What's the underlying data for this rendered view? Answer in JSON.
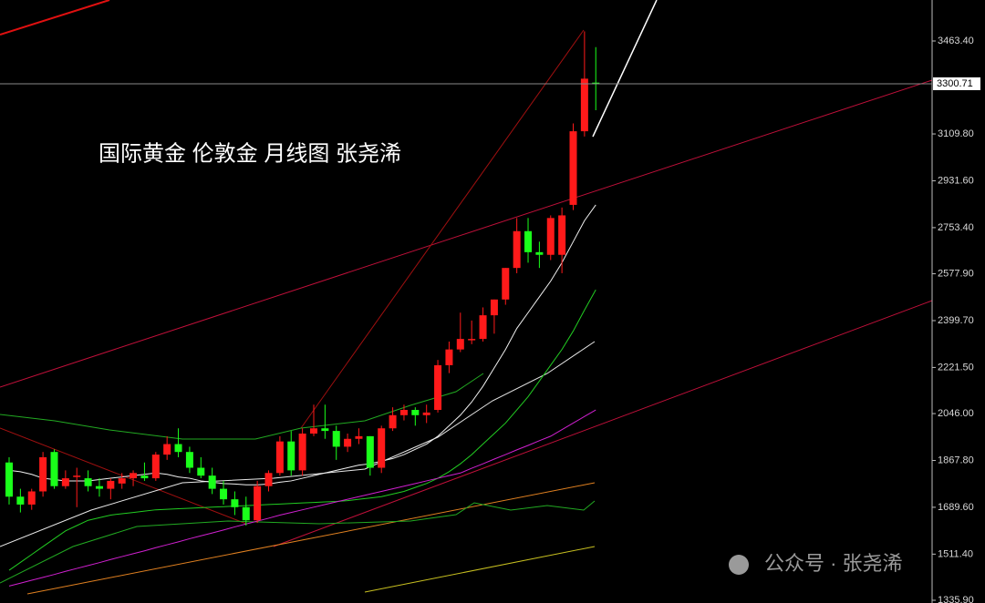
{
  "chart_data": {
    "type": "candlestick",
    "title": "国际黄金 伦敦金 月线图 张尧浠",
    "watermark": "公众号 · 张尧浠",
    "ylim": [
      1325.5,
      3619.3
    ],
    "yticks": [
      {
        "value": 3463.4,
        "label": "3463.40"
      },
      {
        "value": 3109.8,
        "label": "3109.80"
      },
      {
        "value": 2931.6,
        "label": "2931.60"
      },
      {
        "value": 2753.4,
        "label": "2753.40"
      },
      {
        "value": 2577.9,
        "label": "2577.90"
      },
      {
        "value": 2399.7,
        "label": "2399.70"
      },
      {
        "value": 2221.5,
        "label": "2221.50"
      },
      {
        "value": 2046,
        "label": "2046.00"
      },
      {
        "value": 1867.8,
        "label": "1867.80"
      },
      {
        "value": 1689.6,
        "label": "1689.60"
      },
      {
        "value": 1511.4,
        "label": "1511.40"
      },
      {
        "value": 1335.9,
        "label": "1335.90"
      }
    ],
    "current_price": 3300.71,
    "up_color": "#ff1a1a",
    "down_color": "#1aff1a",
    "open": [
      1860,
      1730,
      1700,
      1750,
      1900,
      1770,
      1810,
      1800,
      1770,
      1760,
      1780,
      1800,
      1810,
      1800,
      1890,
      1930,
      1900,
      1840,
      1810,
      1760,
      1720,
      1690,
      1640,
      1770,
      1820,
      1940,
      1830,
      1970,
      1990,
      1980,
      1920,
      1950,
      1960,
      1840,
      1990,
      2040,
      2060,
      2040,
      2060,
      2230,
      2290,
      2330,
      2330,
      2420,
      2480,
      2600,
      2740,
      2660,
      2650,
      2650,
      2840,
      3120,
      3305
    ],
    "high": [
      1880,
      1760,
      1760,
      1900,
      1910,
      1830,
      1840,
      1830,
      1800,
      1800,
      1820,
      1830,
      1860,
      1900,
      1960,
      1990,
      1920,
      1880,
      1840,
      1790,
      1750,
      1730,
      1790,
      1830,
      1960,
      1980,
      1990,
      2080,
      2080,
      2000,
      1970,
      1990,
      1960,
      2000,
      2070,
      2080,
      2070,
      2080,
      2250,
      2320,
      2430,
      2400,
      2450,
      2480,
      2600,
      2790,
      2790,
      2700,
      2800,
      2830,
      3150,
      3500,
      3440
    ],
    "low": [
      1700,
      1670,
      1680,
      1730,
      1760,
      1760,
      1690,
      1750,
      1730,
      1720,
      1760,
      1770,
      1790,
      1790,
      1870,
      1880,
      1820,
      1800,
      1740,
      1700,
      1660,
      1620,
      1630,
      1750,
      1810,
      1810,
      1810,
      1960,
      1950,
      1870,
      1900,
      1930,
      1810,
      1820,
      1980,
      2020,
      2000,
      2010,
      2050,
      2200,
      2280,
      2310,
      2320,
      2350,
      2460,
      2580,
      2620,
      2600,
      2630,
      2580,
      2820,
      3100,
      3200
    ],
    "close": [
      1730,
      1700,
      1750,
      1880,
      1770,
      1800,
      1810,
      1770,
      1760,
      1790,
      1800,
      1820,
      1800,
      1890,
      1930,
      1900,
      1840,
      1810,
      1760,
      1720,
      1690,
      1640,
      1770,
      1820,
      1940,
      1830,
      1970,
      1990,
      1980,
      1920,
      1950,
      1960,
      1840,
      1990,
      2040,
      2060,
      2040,
      2050,
      2230,
      2290,
      2330,
      2330,
      2420,
      2480,
      2600,
      2740,
      2660,
      2650,
      2790,
      2800,
      3120,
      3320,
      3300.71
    ],
    "overlays": [
      {
        "color": "#f0f0f0",
        "values": [
          1830,
          1825,
          1815,
          1800,
          1795,
          1790,
          1790,
          1790,
          1795,
          1800,
          1805,
          1810,
          1815,
          1820,
          1815,
          1805,
          1800,
          1790,
          1785,
          1780,
          1778,
          1775,
          1775,
          1778,
          1785,
          1790,
          1800,
          1810,
          1820,
          1830,
          1840,
          1850,
          1855,
          1865,
          1875,
          1890,
          1910,
          1930,
          1960,
          2000,
          2040,
          2090,
          2150,
          2220,
          2290,
          2370,
          2430,
          2490,
          2550,
          2620,
          2700,
          2780,
          2840
        ]
      },
      {
        "color": "#22cc22",
        "values": [
          1450,
          1480,
          1510,
          1540,
          1570,
          1600,
          1620,
          1640,
          1650,
          1660,
          1665,
          1670,
          1675,
          1680,
          1682,
          1684,
          1686,
          1688,
          1690,
          1692,
          1694,
          1696,
          1698,
          1700,
          1702,
          1704,
          1706,
          1708,
          1710,
          1712,
          1715,
          1720,
          1725,
          1730,
          1740,
          1750,
          1765,
          1780,
          1800,
          1825,
          1855,
          1890,
          1930,
          1970,
          2010,
          2060,
          2110,
          2170,
          2230,
          2290,
          2360,
          2440,
          2517
        ]
      },
      {
        "color": "#d020d0",
        "values": [
          1390,
          1401,
          1412,
          1423,
          1434,
          1446,
          1457,
          1468,
          1479,
          1491,
          1502,
          1513,
          1524,
          1536,
          1547,
          1558,
          1570,
          1581,
          1592,
          1603,
          1615,
          1626,
          1637,
          1648,
          1660,
          1670,
          1680,
          1690,
          1700,
          1710,
          1720,
          1730,
          1740,
          1750,
          1760,
          1770,
          1780,
          1790,
          1800,
          1810,
          1820,
          1838,
          1855,
          1873,
          1890,
          1908,
          1925,
          1943,
          1960,
          1985,
          2010,
          2035,
          2060
        ]
      }
    ]
  }
}
